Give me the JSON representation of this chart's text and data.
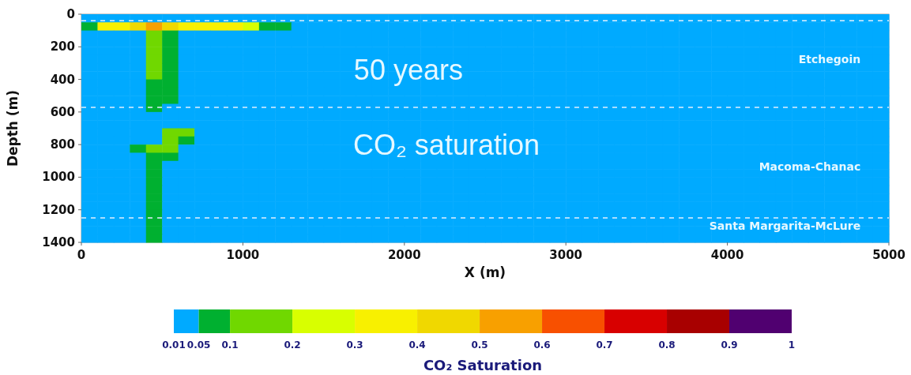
{
  "chart_data": {
    "type": "heatmap",
    "xlabel": "X (m)",
    "ylabel": "Depth (m)",
    "clabel": "CO₂ Saturation",
    "xlim": [
      0,
      5000
    ],
    "xticks": [
      0,
      1000,
      2000,
      3000,
      4000,
      5000
    ],
    "ylim": [
      1400,
      0
    ],
    "yticks": [
      0,
      200,
      400,
      600,
      800,
      1000,
      1200,
      1400
    ],
    "cticks": [
      0.01,
      0.05,
      0.1,
      0.2,
      0.3,
      0.4,
      0.5,
      0.6,
      0.7,
      0.8,
      0.9,
      1
    ],
    "colors": [
      "#00aaff",
      "#00b030",
      "#70d800",
      "#d8ff00",
      "#f8f000",
      "#f0d800",
      "#f8a000",
      "#f85000",
      "#d80000",
      "#a80000",
      "#500070"
    ],
    "grid": false,
    "x": [
      50,
      150,
      250,
      350,
      450,
      550,
      650,
      750,
      850,
      950,
      1050,
      1150,
      1250,
      1350,
      1450,
      1550,
      1650,
      1750,
      1850,
      1950,
      2050,
      2150,
      2250,
      2350,
      2450,
      2550,
      2650,
      2750,
      2850,
      2950,
      3050,
      3150,
      3250,
      3350,
      3450,
      3550,
      3650,
      3750,
      3850,
      3950,
      4050,
      4150,
      4250,
      4350,
      4450,
      4550,
      4650,
      4750,
      4850,
      4950
    ],
    "y": [
      25,
      75,
      125,
      175,
      225,
      275,
      325,
      375,
      425,
      475,
      525,
      575,
      625,
      675,
      725,
      775,
      825,
      875,
      925,
      975,
      1025,
      1075,
      1125,
      1175,
      1225,
      1275,
      1325,
      1375
    ],
    "cells": [
      [
        0.01,
        0.01,
        0.01,
        0.01,
        0.01,
        0.01,
        0.01,
        0.01,
        0.01,
        0.01,
        0.01,
        0.01,
        0.01,
        0.01,
        0.01,
        0.01,
        0.01,
        0.01,
        0.01,
        0.01,
        0.01,
        0.01,
        0.01,
        0.01,
        0.01,
        0.01,
        0.01,
        0.01,
        0.01,
        0.01,
        0.01,
        0.01,
        0.01,
        0.01,
        0.01,
        0.01,
        0.01,
        0.01,
        0.01,
        0.01,
        0.01,
        0.01,
        0.01,
        0.01,
        0.01,
        0.01,
        0.01,
        0.01,
        0.01,
        0.01
      ],
      [
        0.05,
        0.3,
        0.3,
        0.4,
        0.5,
        0.4,
        0.3,
        0.3,
        0.3,
        0.3,
        0.2,
        0.05,
        0.05,
        0.01,
        0.01,
        0.01,
        0.01,
        0.01,
        0.01,
        0.01,
        0.01,
        0.01,
        0.01,
        0.01,
        0.01,
        0.01,
        0.01,
        0.01,
        0.01,
        0.01,
        0.01,
        0.01,
        0.01,
        0.01,
        0.01,
        0.01,
        0.01,
        0.01,
        0.01,
        0.01,
        0.01,
        0.01,
        0.01,
        0.01,
        0.01,
        0.01,
        0.01,
        0.01,
        0.01,
        0.01
      ],
      [
        0.01,
        0.01,
        0.01,
        0.01,
        0.1,
        0.05,
        0.01,
        0.01,
        0.01,
        0.01,
        0.01,
        0.01,
        0.01,
        0.01,
        0.01,
        0.01,
        0.01,
        0.01,
        0.01,
        0.01,
        0.01,
        0.01,
        0.01,
        0.01,
        0.01,
        0.01,
        0.01,
        0.01,
        0.01,
        0.01,
        0.01,
        0.01,
        0.01,
        0.01,
        0.01,
        0.01,
        0.01,
        0.01,
        0.01,
        0.01,
        0.01,
        0.01,
        0.01,
        0.01,
        0.01,
        0.01,
        0.01,
        0.01,
        0.01,
        0.01
      ],
      [
        0.01,
        0.01,
        0.01,
        0.01,
        0.1,
        0.05,
        0.01,
        0.01,
        0.01,
        0.01,
        0.01,
        0.01,
        0.01,
        0.01,
        0.01,
        0.01,
        0.01,
        0.01,
        0.01,
        0.01,
        0.01,
        0.01,
        0.01,
        0.01,
        0.01,
        0.01,
        0.01,
        0.01,
        0.01,
        0.01,
        0.01,
        0.01,
        0.01,
        0.01,
        0.01,
        0.01,
        0.01,
        0.01,
        0.01,
        0.01,
        0.01,
        0.01,
        0.01,
        0.01,
        0.01,
        0.01,
        0.01,
        0.01,
        0.01,
        0.01
      ],
      [
        0.01,
        0.01,
        0.01,
        0.01,
        0.1,
        0.05,
        0.01,
        0.01,
        0.01,
        0.01,
        0.01,
        0.01,
        0.01,
        0.01,
        0.01,
        0.01,
        0.01,
        0.01,
        0.01,
        0.01,
        0.01,
        0.01,
        0.01,
        0.01,
        0.01,
        0.01,
        0.01,
        0.01,
        0.01,
        0.01,
        0.01,
        0.01,
        0.01,
        0.01,
        0.01,
        0.01,
        0.01,
        0.01,
        0.01,
        0.01,
        0.01,
        0.01,
        0.01,
        0.01,
        0.01,
        0.01,
        0.01,
        0.01,
        0.01,
        0.01
      ],
      [
        0.01,
        0.01,
        0.01,
        0.01,
        0.1,
        0.05,
        0.01,
        0.01,
        0.01,
        0.01,
        0.01,
        0.01,
        0.01,
        0.01,
        0.01,
        0.01,
        0.01,
        0.01,
        0.01,
        0.01,
        0.01,
        0.01,
        0.01,
        0.01,
        0.01,
        0.01,
        0.01,
        0.01,
        0.01,
        0.01,
        0.01,
        0.01,
        0.01,
        0.01,
        0.01,
        0.01,
        0.01,
        0.01,
        0.01,
        0.01,
        0.01,
        0.01,
        0.01,
        0.01,
        0.01,
        0.01,
        0.01,
        0.01,
        0.01,
        0.01
      ],
      [
        0.01,
        0.01,
        0.01,
        0.01,
        0.1,
        0.05,
        0.01,
        0.01,
        0.01,
        0.01,
        0.01,
        0.01,
        0.01,
        0.01,
        0.01,
        0.01,
        0.01,
        0.01,
        0.01,
        0.01,
        0.01,
        0.01,
        0.01,
        0.01,
        0.01,
        0.01,
        0.01,
        0.01,
        0.01,
        0.01,
        0.01,
        0.01,
        0.01,
        0.01,
        0.01,
        0.01,
        0.01,
        0.01,
        0.01,
        0.01,
        0.01,
        0.01,
        0.01,
        0.01,
        0.01,
        0.01,
        0.01,
        0.01,
        0.01,
        0.01
      ],
      [
        0.01,
        0.01,
        0.01,
        0.01,
        0.1,
        0.05,
        0.01,
        0.01,
        0.01,
        0.01,
        0.01,
        0.01,
        0.01,
        0.01,
        0.01,
        0.01,
        0.01,
        0.01,
        0.01,
        0.01,
        0.01,
        0.01,
        0.01,
        0.01,
        0.01,
        0.01,
        0.01,
        0.01,
        0.01,
        0.01,
        0.01,
        0.01,
        0.01,
        0.01,
        0.01,
        0.01,
        0.01,
        0.01,
        0.01,
        0.01,
        0.01,
        0.01,
        0.01,
        0.01,
        0.01,
        0.01,
        0.01,
        0.01,
        0.01,
        0.01
      ],
      [
        0.01,
        0.01,
        0.01,
        0.01,
        0.05,
        0.05,
        0.01,
        0.01,
        0.01,
        0.01,
        0.01,
        0.01,
        0.01,
        0.01,
        0.01,
        0.01,
        0.01,
        0.01,
        0.01,
        0.01,
        0.01,
        0.01,
        0.01,
        0.01,
        0.01,
        0.01,
        0.01,
        0.01,
        0.01,
        0.01,
        0.01,
        0.01,
        0.01,
        0.01,
        0.01,
        0.01,
        0.01,
        0.01,
        0.01,
        0.01,
        0.01,
        0.01,
        0.01,
        0.01,
        0.01,
        0.01,
        0.01,
        0.01,
        0.01,
        0.01
      ],
      [
        0.01,
        0.01,
        0.01,
        0.01,
        0.05,
        0.05,
        0.01,
        0.01,
        0.01,
        0.01,
        0.01,
        0.01,
        0.01,
        0.01,
        0.01,
        0.01,
        0.01,
        0.01,
        0.01,
        0.01,
        0.01,
        0.01,
        0.01,
        0.01,
        0.01,
        0.01,
        0.01,
        0.01,
        0.01,
        0.01,
        0.01,
        0.01,
        0.01,
        0.01,
        0.01,
        0.01,
        0.01,
        0.01,
        0.01,
        0.01,
        0.01,
        0.01,
        0.01,
        0.01,
        0.01,
        0.01,
        0.01,
        0.01,
        0.01,
        0.01
      ],
      [
        0.01,
        0.01,
        0.01,
        0.01,
        0.05,
        0.05,
        0.01,
        0.01,
        0.01,
        0.01,
        0.01,
        0.01,
        0.01,
        0.01,
        0.01,
        0.01,
        0.01,
        0.01,
        0.01,
        0.01,
        0.01,
        0.01,
        0.01,
        0.01,
        0.01,
        0.01,
        0.01,
        0.01,
        0.01,
        0.01,
        0.01,
        0.01,
        0.01,
        0.01,
        0.01,
        0.01,
        0.01,
        0.01,
        0.01,
        0.01,
        0.01,
        0.01,
        0.01,
        0.01,
        0.01,
        0.01,
        0.01,
        0.01,
        0.01,
        0.01
      ],
      [
        0.01,
        0.01,
        0.01,
        0.01,
        0.05,
        0.01,
        0.01,
        0.01,
        0.01,
        0.01,
        0.01,
        0.01,
        0.01,
        0.01,
        0.01,
        0.01,
        0.01,
        0.01,
        0.01,
        0.01,
        0.01,
        0.01,
        0.01,
        0.01,
        0.01,
        0.01,
        0.01,
        0.01,
        0.01,
        0.01,
        0.01,
        0.01,
        0.01,
        0.01,
        0.01,
        0.01,
        0.01,
        0.01,
        0.01,
        0.01,
        0.01,
        0.01,
        0.01,
        0.01,
        0.01,
        0.01,
        0.01,
        0.01,
        0.01,
        0.01
      ],
      [
        0.01,
        0.01,
        0.01,
        0.01,
        0.01,
        0.01,
        0.01,
        0.01,
        0.01,
        0.01,
        0.01,
        0.01,
        0.01,
        0.01,
        0.01,
        0.01,
        0.01,
        0.01,
        0.01,
        0.01,
        0.01,
        0.01,
        0.01,
        0.01,
        0.01,
        0.01,
        0.01,
        0.01,
        0.01,
        0.01,
        0.01,
        0.01,
        0.01,
        0.01,
        0.01,
        0.01,
        0.01,
        0.01,
        0.01,
        0.01,
        0.01,
        0.01,
        0.01,
        0.01,
        0.01,
        0.01,
        0.01,
        0.01,
        0.01,
        0.01
      ],
      [
        0.01,
        0.01,
        0.01,
        0.01,
        0.01,
        0.01,
        0.01,
        0.01,
        0.01,
        0.01,
        0.01,
        0.01,
        0.01,
        0.01,
        0.01,
        0.01,
        0.01,
        0.01,
        0.01,
        0.01,
        0.01,
        0.01,
        0.01,
        0.01,
        0.01,
        0.01,
        0.01,
        0.01,
        0.01,
        0.01,
        0.01,
        0.01,
        0.01,
        0.01,
        0.01,
        0.01,
        0.01,
        0.01,
        0.01,
        0.01,
        0.01,
        0.01,
        0.01,
        0.01,
        0.01,
        0.01,
        0.01,
        0.01,
        0.01,
        0.01
      ],
      [
        0.01,
        0.01,
        0.01,
        0.01,
        0.01,
        0.1,
        0.1,
        0.01,
        0.01,
        0.01,
        0.01,
        0.01,
        0.01,
        0.01,
        0.01,
        0.01,
        0.01,
        0.01,
        0.01,
        0.01,
        0.01,
        0.01,
        0.01,
        0.01,
        0.01,
        0.01,
        0.01,
        0.01,
        0.01,
        0.01,
        0.01,
        0.01,
        0.01,
        0.01,
        0.01,
        0.01,
        0.01,
        0.01,
        0.01,
        0.01,
        0.01,
        0.01,
        0.01,
        0.01,
        0.01,
        0.01,
        0.01,
        0.01,
        0.01,
        0.01
      ],
      [
        0.01,
        0.01,
        0.01,
        0.01,
        0.01,
        0.1,
        0.05,
        0.01,
        0.01,
        0.01,
        0.01,
        0.01,
        0.01,
        0.01,
        0.01,
        0.01,
        0.01,
        0.01,
        0.01,
        0.01,
        0.01,
        0.01,
        0.01,
        0.01,
        0.01,
        0.01,
        0.01,
        0.01,
        0.01,
        0.01,
        0.01,
        0.01,
        0.01,
        0.01,
        0.01,
        0.01,
        0.01,
        0.01,
        0.01,
        0.01,
        0.01,
        0.01,
        0.01,
        0.01,
        0.01,
        0.01,
        0.01,
        0.01,
        0.01,
        0.01
      ],
      [
        0.01,
        0.01,
        0.01,
        0.05,
        0.1,
        0.1,
        0.01,
        0.01,
        0.01,
        0.01,
        0.01,
        0.01,
        0.01,
        0.01,
        0.01,
        0.01,
        0.01,
        0.01,
        0.01,
        0.01,
        0.01,
        0.01,
        0.01,
        0.01,
        0.01,
        0.01,
        0.01,
        0.01,
        0.01,
        0.01,
        0.01,
        0.01,
        0.01,
        0.01,
        0.01,
        0.01,
        0.01,
        0.01,
        0.01,
        0.01,
        0.01,
        0.01,
        0.01,
        0.01,
        0.01,
        0.01,
        0.01,
        0.01,
        0.01,
        0.01
      ],
      [
        0.01,
        0.01,
        0.01,
        0.01,
        0.05,
        0.05,
        0.01,
        0.01,
        0.01,
        0.01,
        0.01,
        0.01,
        0.01,
        0.01,
        0.01,
        0.01,
        0.01,
        0.01,
        0.01,
        0.01,
        0.01,
        0.01,
        0.01,
        0.01,
        0.01,
        0.01,
        0.01,
        0.01,
        0.01,
        0.01,
        0.01,
        0.01,
        0.01,
        0.01,
        0.01,
        0.01,
        0.01,
        0.01,
        0.01,
        0.01,
        0.01,
        0.01,
        0.01,
        0.01,
        0.01,
        0.01,
        0.01,
        0.01,
        0.01,
        0.01
      ],
      [
        0.01,
        0.01,
        0.01,
        0.01,
        0.05,
        0.01,
        0.01,
        0.01,
        0.01,
        0.01,
        0.01,
        0.01,
        0.01,
        0.01,
        0.01,
        0.01,
        0.01,
        0.01,
        0.01,
        0.01,
        0.01,
        0.01,
        0.01,
        0.01,
        0.01,
        0.01,
        0.01,
        0.01,
        0.01,
        0.01,
        0.01,
        0.01,
        0.01,
        0.01,
        0.01,
        0.01,
        0.01,
        0.01,
        0.01,
        0.01,
        0.01,
        0.01,
        0.01,
        0.01,
        0.01,
        0.01,
        0.01,
        0.01,
        0.01,
        0.01
      ],
      [
        0.01,
        0.01,
        0.01,
        0.01,
        0.05,
        0.01,
        0.01,
        0.01,
        0.01,
        0.01,
        0.01,
        0.01,
        0.01,
        0.01,
        0.01,
        0.01,
        0.01,
        0.01,
        0.01,
        0.01,
        0.01,
        0.01,
        0.01,
        0.01,
        0.01,
        0.01,
        0.01,
        0.01,
        0.01,
        0.01,
        0.01,
        0.01,
        0.01,
        0.01,
        0.01,
        0.01,
        0.01,
        0.01,
        0.01,
        0.01,
        0.01,
        0.01,
        0.01,
        0.01,
        0.01,
        0.01,
        0.01,
        0.01,
        0.01,
        0.01
      ],
      [
        0.01,
        0.01,
        0.01,
        0.01,
        0.05,
        0.01,
        0.01,
        0.01,
        0.01,
        0.01,
        0.01,
        0.01,
        0.01,
        0.01,
        0.01,
        0.01,
        0.01,
        0.01,
        0.01,
        0.01,
        0.01,
        0.01,
        0.01,
        0.01,
        0.01,
        0.01,
        0.01,
        0.01,
        0.01,
        0.01,
        0.01,
        0.01,
        0.01,
        0.01,
        0.01,
        0.01,
        0.01,
        0.01,
        0.01,
        0.01,
        0.01,
        0.01,
        0.01,
        0.01,
        0.01,
        0.01,
        0.01,
        0.01,
        0.01,
        0.01
      ],
      [
        0.01,
        0.01,
        0.01,
        0.01,
        0.05,
        0.01,
        0.01,
        0.01,
        0.01,
        0.01,
        0.01,
        0.01,
        0.01,
        0.01,
        0.01,
        0.01,
        0.01,
        0.01,
        0.01,
        0.01,
        0.01,
        0.01,
        0.01,
        0.01,
        0.01,
        0.01,
        0.01,
        0.01,
        0.01,
        0.01,
        0.01,
        0.01,
        0.01,
        0.01,
        0.01,
        0.01,
        0.01,
        0.01,
        0.01,
        0.01,
        0.01,
        0.01,
        0.01,
        0.01,
        0.01,
        0.01,
        0.01,
        0.01,
        0.01,
        0.01
      ],
      [
        0.01,
        0.01,
        0.01,
        0.01,
        0.05,
        0.01,
        0.01,
        0.01,
        0.01,
        0.01,
        0.01,
        0.01,
        0.01,
        0.01,
        0.01,
        0.01,
        0.01,
        0.01,
        0.01,
        0.01,
        0.01,
        0.01,
        0.01,
        0.01,
        0.01,
        0.01,
        0.01,
        0.01,
        0.01,
        0.01,
        0.01,
        0.01,
        0.01,
        0.01,
        0.01,
        0.01,
        0.01,
        0.01,
        0.01,
        0.01,
        0.01,
        0.01,
        0.01,
        0.01,
        0.01,
        0.01,
        0.01,
        0.01,
        0.01,
        0.01
      ],
      [
        0.01,
        0.01,
        0.01,
        0.01,
        0.05,
        0.01,
        0.01,
        0.01,
        0.01,
        0.01,
        0.01,
        0.01,
        0.01,
        0.01,
        0.01,
        0.01,
        0.01,
        0.01,
        0.01,
        0.01,
        0.01,
        0.01,
        0.01,
        0.01,
        0.01,
        0.01,
        0.01,
        0.01,
        0.01,
        0.01,
        0.01,
        0.01,
        0.01,
        0.01,
        0.01,
        0.01,
        0.01,
        0.01,
        0.01,
        0.01,
        0.01,
        0.01,
        0.01,
        0.01,
        0.01,
        0.01,
        0.01,
        0.01,
        0.01,
        0.01
      ],
      [
        0.01,
        0.01,
        0.01,
        0.01,
        0.05,
        0.01,
        0.01,
        0.01,
        0.01,
        0.01,
        0.01,
        0.01,
        0.01,
        0.01,
        0.01,
        0.01,
        0.01,
        0.01,
        0.01,
        0.01,
        0.01,
        0.01,
        0.01,
        0.01,
        0.01,
        0.01,
        0.01,
        0.01,
        0.01,
        0.01,
        0.01,
        0.01,
        0.01,
        0.01,
        0.01,
        0.01,
        0.01,
        0.01,
        0.01,
        0.01,
        0.01,
        0.01,
        0.01,
        0.01,
        0.01,
        0.01,
        0.01,
        0.01,
        0.01,
        0.01
      ],
      [
        0.01,
        0.01,
        0.01,
        0.01,
        0.05,
        0.01,
        0.01,
        0.01,
        0.01,
        0.01,
        0.01,
        0.01,
        0.01,
        0.01,
        0.01,
        0.01,
        0.01,
        0.01,
        0.01,
        0.01,
        0.01,
        0.01,
        0.01,
        0.01,
        0.01,
        0.01,
        0.01,
        0.01,
        0.01,
        0.01,
        0.01,
        0.01,
        0.01,
        0.01,
        0.01,
        0.01,
        0.01,
        0.01,
        0.01,
        0.01,
        0.01,
        0.01,
        0.01,
        0.01,
        0.01,
        0.01,
        0.01,
        0.01,
        0.01,
        0.01
      ],
      [
        0.01,
        0.01,
        0.01,
        0.01,
        0.05,
        0.01,
        0.01,
        0.01,
        0.01,
        0.01,
        0.01,
        0.01,
        0.01,
        0.01,
        0.01,
        0.01,
        0.01,
        0.01,
        0.01,
        0.01,
        0.01,
        0.01,
        0.01,
        0.01,
        0.01,
        0.01,
        0.01,
        0.01,
        0.01,
        0.01,
        0.01,
        0.01,
        0.01,
        0.01,
        0.01,
        0.01,
        0.01,
        0.01,
        0.01,
        0.01,
        0.01,
        0.01,
        0.01,
        0.01,
        0.01,
        0.01,
        0.01,
        0.01,
        0.01,
        0.01
      ],
      [
        0.01,
        0.01,
        0.01,
        0.01,
        0.05,
        0.01,
        0.01,
        0.01,
        0.01,
        0.01,
        0.01,
        0.01,
        0.01,
        0.01,
        0.01,
        0.01,
        0.01,
        0.01,
        0.01,
        0.01,
        0.01,
        0.01,
        0.01,
        0.01,
        0.01,
        0.01,
        0.01,
        0.01,
        0.01,
        0.01,
        0.01,
        0.01,
        0.01,
        0.01,
        0.01,
        0.01,
        0.01,
        0.01,
        0.01,
        0.01,
        0.01,
        0.01,
        0.01,
        0.01,
        0.01,
        0.01,
        0.01,
        0.01,
        0.01,
        0.01
      ]
    ],
    "ref_lines": [
      {
        "axis": "y",
        "value": 40,
        "color": "#e0f0ff",
        "line_style": "dashed"
      },
      {
        "axis": "y",
        "value": 572,
        "color": "#e0f0ff",
        "line_style": "dashed"
      },
      {
        "axis": "y",
        "value": 1250,
        "color": "#e0f0ff",
        "line_style": "dashed"
      }
    ],
    "annotations": [
      "50 years",
      "CO₂ saturation",
      "Etchegoin",
      "Macoma-Chanac",
      "Santa Margarita-McLure"
    ]
  }
}
